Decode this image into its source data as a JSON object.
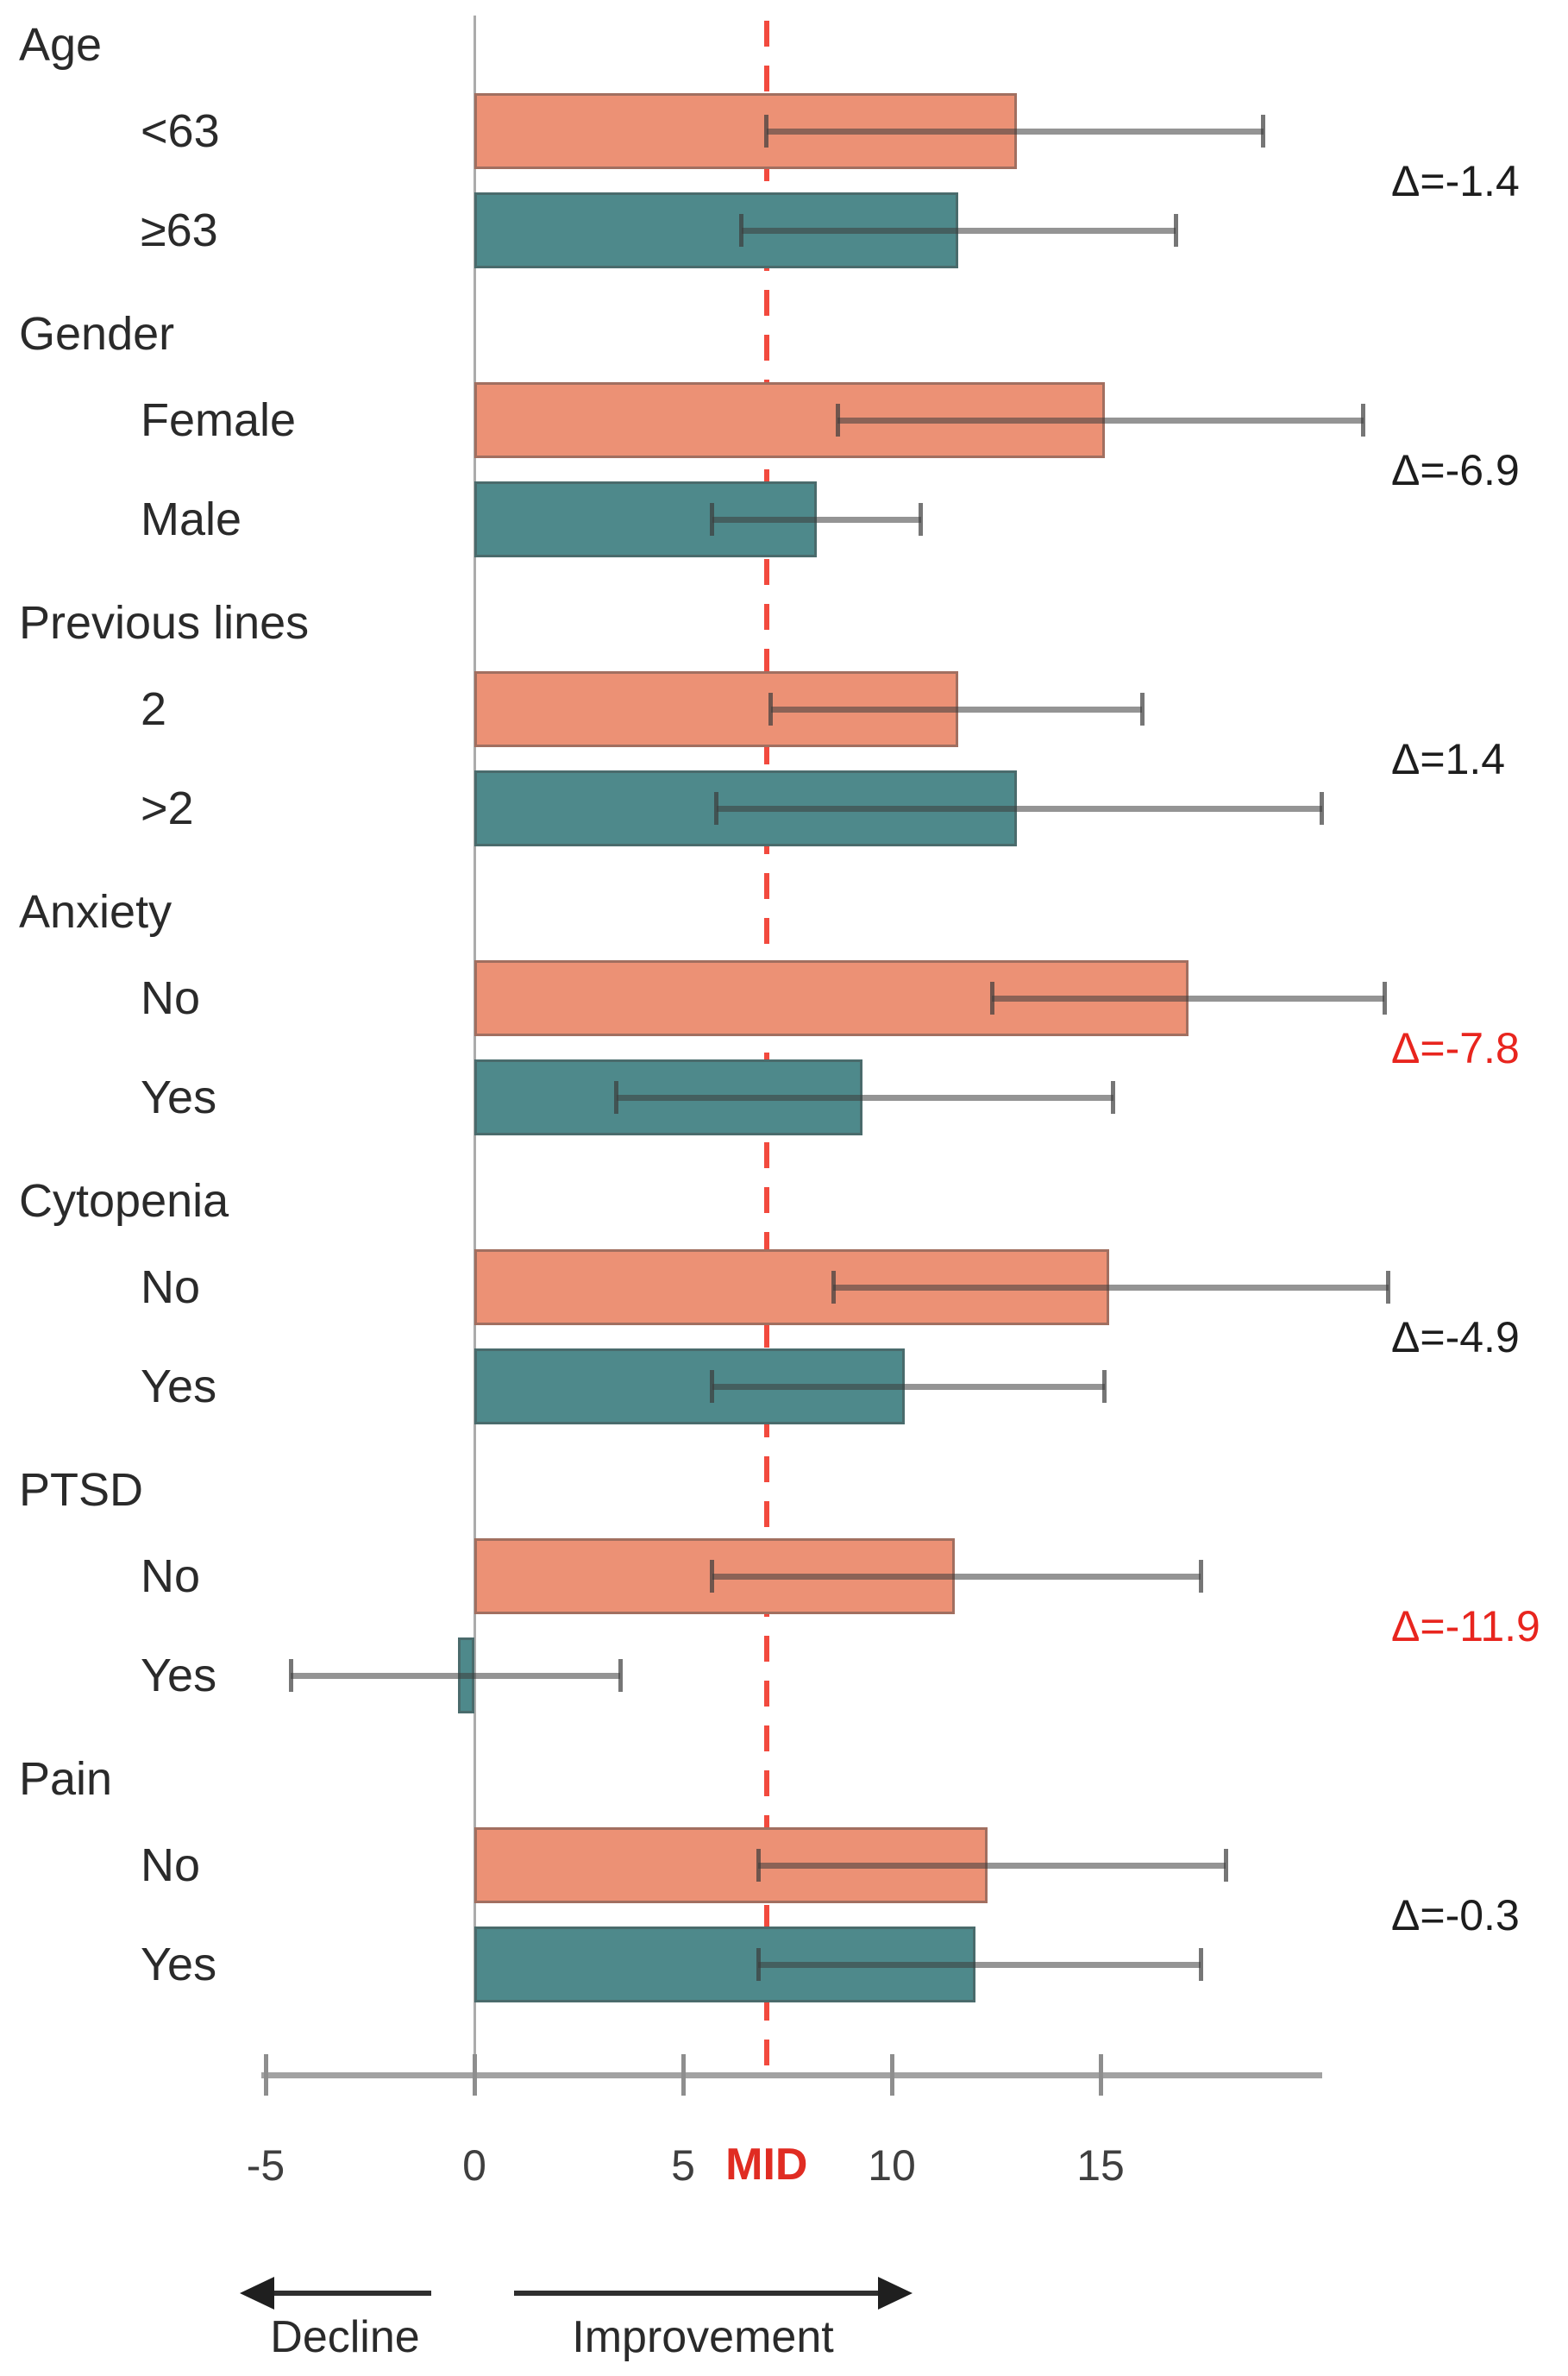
{
  "chart_data": {
    "type": "bar",
    "orientation": "horizontal",
    "x_axis": {
      "ticks": [
        -5,
        0,
        5,
        10,
        15
      ],
      "range": [
        -5.1,
        20.3
      ],
      "grid": false
    },
    "mid_reference": {
      "value": 7,
      "label": "MID"
    },
    "footer": {
      "left_arrow_label": "Decline",
      "right_arrow_label": "Improvement"
    },
    "colors": {
      "series_top": "#ec9175",
      "series_bottom": "#4e898b",
      "delta_normal": "#1d1d1d",
      "delta_highlight": "#e8251e",
      "mid_line": "#f24a3e",
      "mid_text": "#e02c22",
      "axis": "#a2a2a2",
      "zero_line": "#ababab",
      "tick": "#8e8e8e"
    },
    "groups": [
      {
        "label": "Age",
        "delta": "Δ=-1.4",
        "delta_highlight": false,
        "bars": [
          {
            "label": "<63",
            "value": 13.0,
            "ci_low": 7.0,
            "ci_high": 18.9
          },
          {
            "label": "≥63",
            "value": 11.6,
            "ci_low": 6.4,
            "ci_high": 16.8
          }
        ]
      },
      {
        "label": "Gender",
        "delta": "Δ=-6.9",
        "delta_highlight": false,
        "bars": [
          {
            "label": "Female",
            "value": 15.1,
            "ci_low": 8.7,
            "ci_high": 21.3
          },
          {
            "label": "Male",
            "value": 8.2,
            "ci_low": 5.7,
            "ci_high": 10.7
          }
        ]
      },
      {
        "label": "Previous lines",
        "delta": "Δ=1.4",
        "delta_highlight": false,
        "bars": [
          {
            "label": "2",
            "value": 11.6,
            "ci_low": 7.1,
            "ci_high": 16.0
          },
          {
            "label": ">2",
            "value": 13.0,
            "ci_low": 5.8,
            "ci_high": 20.3
          }
        ]
      },
      {
        "label": "Anxiety",
        "delta": "Δ=-7.8",
        "delta_highlight": true,
        "bars": [
          {
            "label": "No",
            "value": 17.1,
            "ci_low": 12.4,
            "ci_high": 21.8
          },
          {
            "label": "Yes",
            "value": 9.3,
            "ci_low": 3.4,
            "ci_high": 15.3
          }
        ]
      },
      {
        "label": "Cytopenia",
        "delta": "Δ=-4.9",
        "delta_highlight": false,
        "bars": [
          {
            "label": "No",
            "value": 15.2,
            "ci_low": 8.6,
            "ci_high": 21.9
          },
          {
            "label": "Yes",
            "value": 10.3,
            "ci_low": 5.7,
            "ci_high": 15.1
          }
        ]
      },
      {
        "label": "PTSD",
        "delta": "Δ=-11.9",
        "delta_highlight": true,
        "bars": [
          {
            "label": "No",
            "value": 11.5,
            "ci_low": 5.7,
            "ci_high": 17.4
          },
          {
            "label": "Yes",
            "value": -0.4,
            "ci_low": -4.4,
            "ci_high": 3.5
          }
        ]
      },
      {
        "label": "Pain",
        "delta": "Δ=-0.3",
        "delta_highlight": false,
        "bars": [
          {
            "label": "No",
            "value": 12.3,
            "ci_low": 6.8,
            "ci_high": 18.0
          },
          {
            "label": "Yes",
            "value": 12.0,
            "ci_low": 6.8,
            "ci_high": 17.4
          }
        ]
      }
    ]
  }
}
